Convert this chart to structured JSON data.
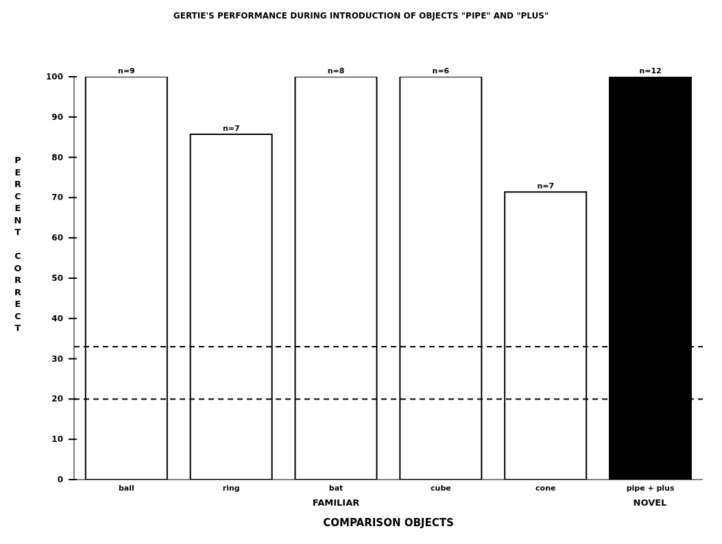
{
  "chart_data": {
    "type": "bar",
    "title": "GERTIE'S PERFORMANCE DURING INTRODUCTION OF OBJECTS \"PIPE\" AND \"PLUS\"",
    "xlabel": "COMPARISON OBJECTS",
    "ylabel": "PERCENT CORRECT",
    "categories": [
      "ball",
      "ring",
      "bat",
      "cube",
      "cone",
      "pipe + plus"
    ],
    "values": [
      100,
      85.7,
      100,
      100,
      71.4,
      100
    ],
    "colors": [
      "#ffffff",
      "#ffffff",
      "#ffffff",
      "#ffffff",
      "#ffffff",
      "#000000"
    ],
    "ylim": [
      0,
      100
    ],
    "yticks": [
      0,
      10,
      20,
      30,
      40,
      50,
      60,
      70,
      80,
      90,
      100
    ],
    "grid": false,
    "legend": false,
    "ref_lines": [
      {
        "axis": "y",
        "value": 33,
        "color": "#000000",
        "line_style": "dashed"
      },
      {
        "axis": "y",
        "value": 20,
        "color": "#000000",
        "line_style": "dashed"
      }
    ],
    "annotations": [
      {
        "text": "n=9",
        "x": "ball",
        "y": 100
      },
      {
        "text": "n=7",
        "x": "ring",
        "y": 85.7
      },
      {
        "text": "n=8",
        "x": "bat",
        "y": 100
      },
      {
        "text": "n=6",
        "x": "cube",
        "y": 100
      },
      {
        "text": "n=7",
        "x": "cone",
        "y": 71.4
      },
      {
        "text": "n=12",
        "x": "pipe + plus",
        "y": 100
      },
      "FAMILIAR",
      "NOVEL"
    ]
  }
}
